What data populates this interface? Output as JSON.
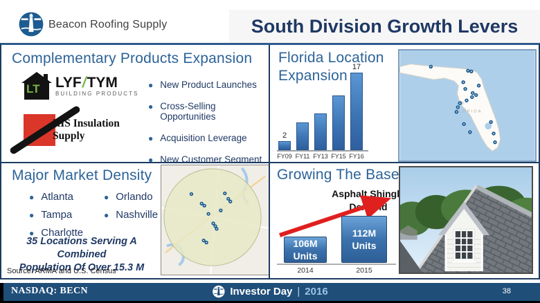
{
  "header": {
    "company": "Beacon Roofing Supply",
    "title": "South Division Growth Levers"
  },
  "panels": {
    "complementary": {
      "heading": "Complementary Products Expansion",
      "bullets": [
        "New Product Launches",
        "Cross-Selling Opportunities",
        "Acquisition Leverage",
        "New Customer Segment"
      ],
      "lyftym": {
        "monogram": "LT",
        "part1": "LYF",
        "separator": "/",
        "part2": "TYM",
        "sub": "BUILDING PRODUCTS"
      },
      "ris": {
        "line1": "RIS Insulation",
        "line2": "Supply"
      }
    },
    "florida": {
      "heading": "Florida Location Expansion",
      "map_label": "FLORIDA"
    },
    "market": {
      "heading": "Major Market Density",
      "cities_left": [
        "Atlanta",
        "Tampa",
        "Charlotte"
      ],
      "cities_right": [
        "Orlando",
        "Nashville"
      ],
      "summary_line1": "35 Locations Serving A Combined",
      "summary_line2": "Population Of Over 15.3 M",
      "source": "Source: ARMA and U.S. Census"
    },
    "growing": {
      "heading": "Growing The Base",
      "note_line1": "Asphalt Shingle",
      "note_line2": "Demand",
      "bars": [
        {
          "value": "106M",
          "unit": "Units",
          "year": "2014"
        },
        {
          "value": "112M",
          "unit": "Units",
          "year": "2015"
        }
      ]
    }
  },
  "footer": {
    "ticker": "NASDAQ: BECN",
    "event": "Investor Day",
    "separator": "|",
    "year": "2016",
    "page": "38"
  },
  "colors": {
    "navy_bar": "#1f4e79",
    "title_text": "#1f3864",
    "heading_blue": "#2c6398",
    "bar_blue": "#2e5f9e",
    "arrow_red": "#e01f1f",
    "lyftym_green": "#7ab648",
    "ris_red": "#da362a"
  },
  "chart_data": [
    {
      "type": "bar",
      "title": "Florida Location Expansion",
      "categories": [
        "FY09",
        "FY11",
        "FY13",
        "FY15",
        "FY16"
      ],
      "values": [
        2,
        6,
        8,
        12,
        17
      ],
      "show_value_labels": [
        true,
        false,
        false,
        false,
        true
      ],
      "xlabel": "",
      "ylabel": "",
      "ylim": [
        0,
        18
      ],
      "grid": false,
      "legend": false
    },
    {
      "type": "bar",
      "title": "Growing The Base",
      "annotation": "Asphalt Shingle Demand",
      "categories": [
        "2014",
        "2015"
      ],
      "values": [
        106,
        112
      ],
      "unit": "M Units",
      "bar_labels": [
        "106M Units",
        "112M Units"
      ],
      "grid": false,
      "legend": false
    }
  ]
}
